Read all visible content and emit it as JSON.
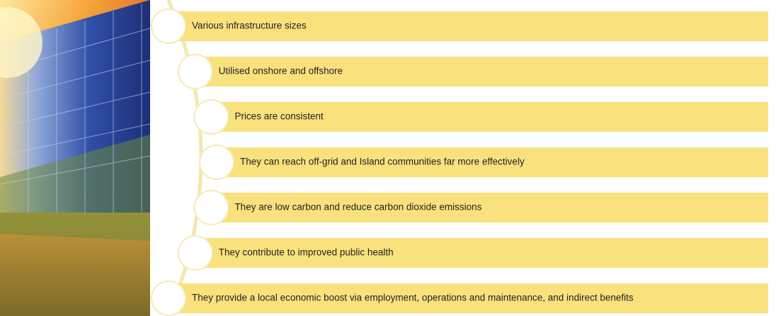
{
  "items": [
    "Various infrastructure sizes",
    "Utilised onshore and offshore",
    "Prices are consistent",
    "They can reach off-grid and Island communities far more effectively",
    "They are low carbon and reduce carbon dioxide emissions",
    "They contribute to improved public health",
    "They provide a local economic boost via employment, operations and maintenance, and indirect benefits"
  ]
}
